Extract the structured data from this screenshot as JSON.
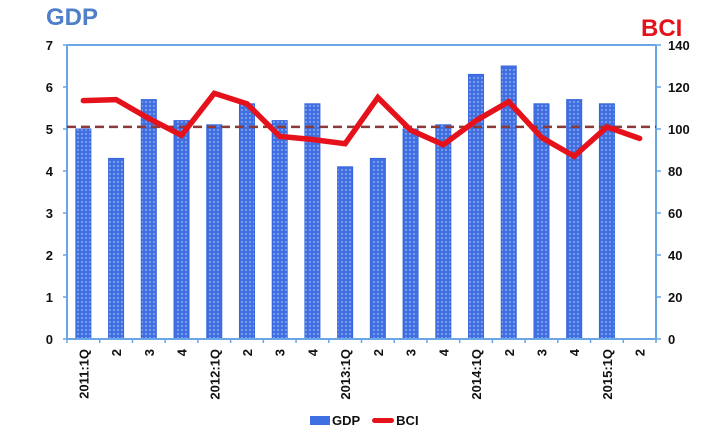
{
  "chart_data": {
    "type": "bar+line",
    "title_left": "GDP",
    "title_right": "BCI",
    "categories": [
      "2011:1Q",
      "2",
      "3",
      "4",
      "2012:1Q",
      "2",
      "3",
      "4",
      "2013:1Q",
      "2",
      "3",
      "4",
      "2014:1Q",
      "2",
      "3",
      "4",
      "2015:1Q",
      "2"
    ],
    "series": [
      {
        "name": "GDP",
        "type": "bar",
        "axis": "left",
        "color": "#3f6fe0",
        "values": [
          5.0,
          4.3,
          5.7,
          5.2,
          5.1,
          5.6,
          5.2,
          5.6,
          4.1,
          4.3,
          5.0,
          5.1,
          6.3,
          6.5,
          5.6,
          5.7,
          5.6,
          null
        ]
      },
      {
        "name": "BCI",
        "type": "line",
        "axis": "right",
        "color": "#e5121b",
        "values": [
          113.5,
          114,
          105,
          97,
          117,
          112,
          96.5,
          95,
          93,
          115,
          99.5,
          92.5,
          104,
          113,
          96,
          87,
          101,
          95.5
        ]
      }
    ],
    "reference_line": {
      "style": "dashed",
      "color": "#8b3a3a",
      "gdp_value": 5.05,
      "bci_value": 101
    },
    "left_axis": {
      "label": "GDP",
      "ylim": [
        0,
        7
      ],
      "ticks": [
        0,
        1,
        2,
        3,
        4,
        5,
        6,
        7
      ]
    },
    "right_axis": {
      "label": "BCI",
      "ylim": [
        0,
        140
      ],
      "ticks": [
        0,
        20,
        40,
        60,
        80,
        100,
        120,
        140
      ]
    },
    "xlabel": "",
    "grid": false,
    "legend_position": "bottom"
  },
  "legend": {
    "gdp": "GDP",
    "bci": "BCI"
  }
}
